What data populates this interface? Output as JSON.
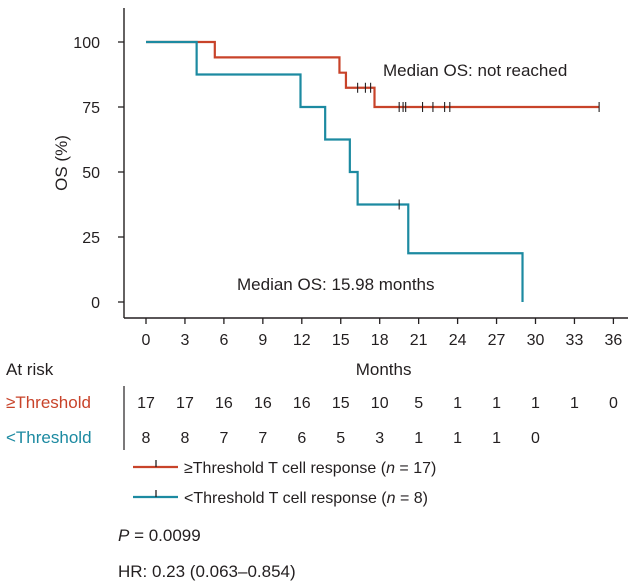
{
  "chart_data": {
    "type": "line",
    "subtype": "kaplan-meier",
    "ylabel": "OS (%)",
    "xlabel": "Months",
    "xlim": [
      0,
      36
    ],
    "ylim": [
      0,
      100
    ],
    "x_ticks": [
      0,
      3,
      6,
      9,
      12,
      15,
      18,
      21,
      24,
      27,
      30,
      33,
      36
    ],
    "x_tick_labels": [
      "0",
      "3",
      "6",
      "9",
      "12",
      "15",
      "18",
      "21",
      "24",
      "27",
      "30",
      "33",
      "36"
    ],
    "y_ticks": [
      0,
      25,
      50,
      75,
      100
    ],
    "y_tick_labels": [
      "0",
      "25",
      "50",
      "75",
      "100"
    ],
    "series": [
      {
        "name": "≥Threshold",
        "color": "#c8432a",
        "steps": [
          [
            0,
            100
          ],
          [
            5.3,
            94.1
          ],
          [
            14.9,
            88.2
          ],
          [
            15.4,
            82.4
          ],
          [
            17.6,
            75.0
          ],
          [
            34.9,
            75.0
          ]
        ],
        "censored": [
          [
            16.3,
            82.4
          ],
          [
            16.9,
            82.4
          ],
          [
            17.3,
            82.4
          ],
          [
            19.5,
            75.0
          ],
          [
            19.8,
            75.0
          ],
          [
            20.0,
            75.0
          ],
          [
            21.3,
            75.0
          ],
          [
            22.1,
            75.0
          ],
          [
            23.0,
            75.0
          ],
          [
            23.4,
            75.0
          ],
          [
            34.9,
            75.0
          ]
        ],
        "median_label": "Median OS: not reached"
      },
      {
        "name": "<Threshold",
        "color": "#1c8aa1",
        "steps": [
          [
            0,
            100
          ],
          [
            3.9,
            87.5
          ],
          [
            11.9,
            75.0
          ],
          [
            13.8,
            62.5
          ],
          [
            15.7,
            50.0
          ],
          [
            16.3,
            37.5
          ],
          [
            20.2,
            18.75
          ],
          [
            29.0,
            0
          ]
        ],
        "censored": [
          [
            19.5,
            37.5
          ]
        ],
        "median_label": "Median OS: 15.98 months"
      }
    ],
    "risk_table": {
      "title": "At risk",
      "rows": [
        {
          "label": "≥Threshold",
          "color": "#c8432a",
          "values": [
            "17",
            "17",
            "16",
            "16",
            "16",
            "15",
            "10",
            "5",
            "1",
            "1",
            "1",
            "1",
            "0"
          ]
        },
        {
          "label": "<Threshold",
          "color": "#1c8aa1",
          "values": [
            "8",
            "8",
            "7",
            "7",
            "6",
            "5",
            "3",
            "1",
            "1",
            "1",
            "0"
          ]
        }
      ]
    },
    "legend": [
      {
        "label": "≥Threshold T cell response (",
        "italic": "n",
        "suffix": " = 17)",
        "color": "#c8432a"
      },
      {
        "label": "<Threshold T cell response (",
        "italic": "n",
        "suffix": " = 8)",
        "color": "#1c8aa1"
      }
    ]
  },
  "stats": {
    "p_label": "P",
    "p_value": " = 0.0099",
    "hr": "HR: 0.23 (0.063–0.854)"
  }
}
